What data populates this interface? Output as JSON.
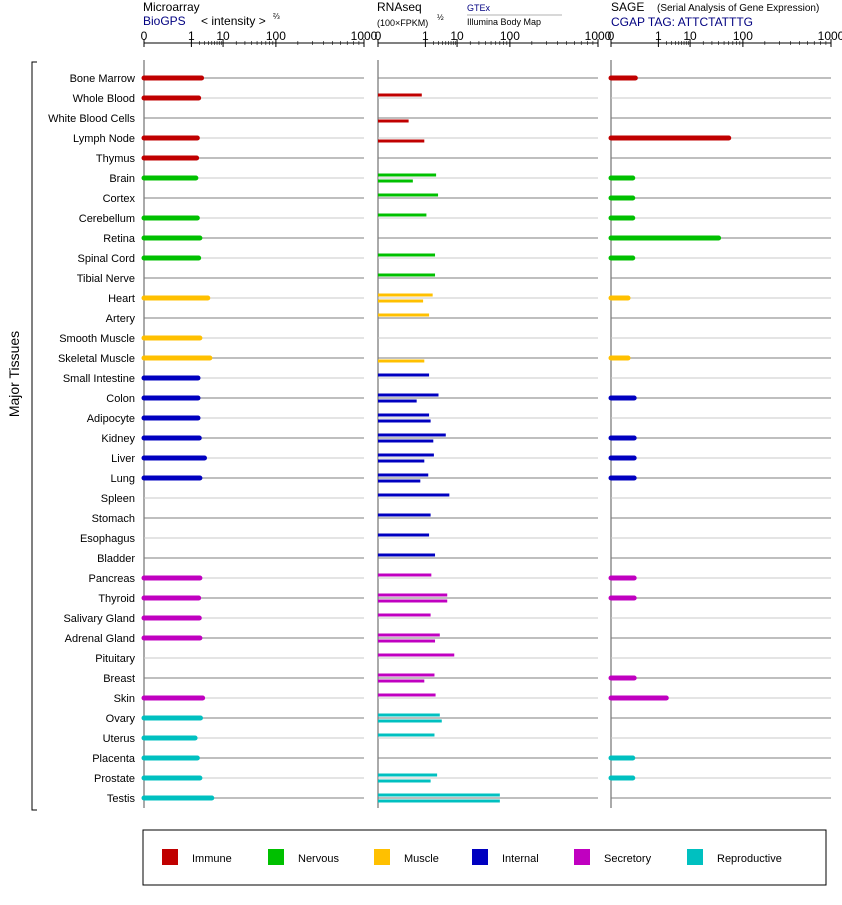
{
  "header": {
    "microarray": {
      "title": "Microarray",
      "source": "BioGPS",
      "unit": "< intensity >",
      "unit_exp": "⅔"
    },
    "rnaseq": {
      "title": "RNAseq",
      "unit": "(100×FPKM)",
      "unit_exp": "½",
      "source1": "GTEx",
      "source2": "Illumina Body Map"
    },
    "sage": {
      "title": "SAGE",
      "subtitle": "(Serial Analysis of Gene Expression)",
      "tag": "CGAP TAG: ATTCTATTTG"
    }
  },
  "ylabel": "Major Tissues",
  "colors": {
    "Immune": "#c00000",
    "Nervous": "#00c000",
    "Muscle": "#ffc000",
    "Internal": "#0000c0",
    "Secretory": "#c000c0",
    "Reproductive": "#00c0c0"
  },
  "chart_data": {
    "type": "bar",
    "x_scale": "power",
    "xlim": [
      0,
      1000
    ],
    "x_ticks": [
      "0",
      "1",
      "10",
      "100",
      "1000"
    ],
    "legend": {
      "placement": "bottom",
      "entries": [
        "Immune",
        "Nervous",
        "Muscle",
        "Internal",
        "Secretory",
        "Reproductive"
      ]
    },
    "categories": [
      "Bone Marrow",
      "Whole Blood",
      "White Blood Cells",
      "Lymph Node",
      "Thymus",
      "Brain",
      "Cortex",
      "Cerebellum",
      "Retina",
      "Spinal Cord",
      "Tibial Nerve",
      "Heart",
      "Artery",
      "Smooth Muscle",
      "Skeletal Muscle",
      "Small Intestine",
      "Colon",
      "Adipocyte",
      "Kidney",
      "Liver",
      "Lung",
      "Spleen",
      "Stomach",
      "Esophagus",
      "Bladder",
      "Pancreas",
      "Thyroid",
      "Salivary Gland",
      "Adrenal Gland",
      "Pituitary",
      "Breast",
      "Skin",
      "Ovary",
      "Uterus",
      "Placenta",
      "Prostate",
      "Testis"
    ],
    "groups": [
      "Immune",
      "Immune",
      "Immune",
      "Immune",
      "Immune",
      "Nervous",
      "Nervous",
      "Nervous",
      "Nervous",
      "Nervous",
      "Nervous",
      "Muscle",
      "Muscle",
      "Muscle",
      "Muscle",
      "Internal",
      "Internal",
      "Internal",
      "Internal",
      "Internal",
      "Internal",
      "Internal",
      "Internal",
      "Internal",
      "Internal",
      "Secretory",
      "Secretory",
      "Secretory",
      "Secretory",
      "Secretory",
      "Secretory",
      "Secretory",
      "Reproductive",
      "Reproductive",
      "Reproductive",
      "Reproductive",
      "Reproductive"
    ],
    "series": [
      {
        "name": "Microarray",
        "values": [
          2.4,
          1.9,
          null,
          1.7,
          1.6,
          1.5,
          null,
          1.7,
          2.1,
          1.9,
          null,
          3.8,
          null,
          2.1,
          4.4,
          1.8,
          1.8,
          1.8,
          2.0,
          3.0,
          2.1,
          null,
          null,
          null,
          null,
          2.1,
          1.9,
          2.0,
          2.1,
          null,
          null,
          2.6,
          2.2,
          1.4,
          1.7,
          2.1,
          5.0
        ]
      },
      {
        "name": "GTEx",
        "values": [
          null,
          0.7,
          null,
          null,
          null,
          2.5,
          2.9,
          1.1,
          null,
          2.3,
          2.3,
          1.9,
          1.4,
          null,
          null,
          1.4,
          3.0,
          1.4,
          5.0,
          2.1,
          1.3,
          6.3,
          1.6,
          1.4,
          2.3,
          1.7,
          5.5,
          1.6,
          3.3,
          8.5,
          2.2,
          2.4,
          3.3,
          2.2,
          null,
          2.7,
          70
        ]
      },
      {
        "name": "Illumina Body Map",
        "values": [
          null,
          null,
          0.14,
          0.9,
          null,
          0.25,
          null,
          null,
          null,
          null,
          null,
          0.8,
          null,
          null,
          0.9,
          null,
          0.4,
          1.6,
          2.0,
          0.9,
          0.6,
          null,
          null,
          null,
          null,
          null,
          5.5,
          null,
          2.3,
          null,
          0.9,
          null,
          3.8,
          null,
          null,
          1.6,
          70
        ]
      },
      {
        "name": "SAGE",
        "values": [
          0.05,
          null,
          null,
          60,
          null,
          0.03,
          0.03,
          0.03,
          40,
          0.03,
          null,
          0.01,
          null,
          null,
          0.01,
          null,
          0.04,
          null,
          0.04,
          0.04,
          0.04,
          null,
          null,
          null,
          null,
          0.04,
          0.04,
          null,
          null,
          null,
          0.04,
          2.0,
          null,
          null,
          0.03,
          0.03,
          null
        ]
      }
    ]
  }
}
